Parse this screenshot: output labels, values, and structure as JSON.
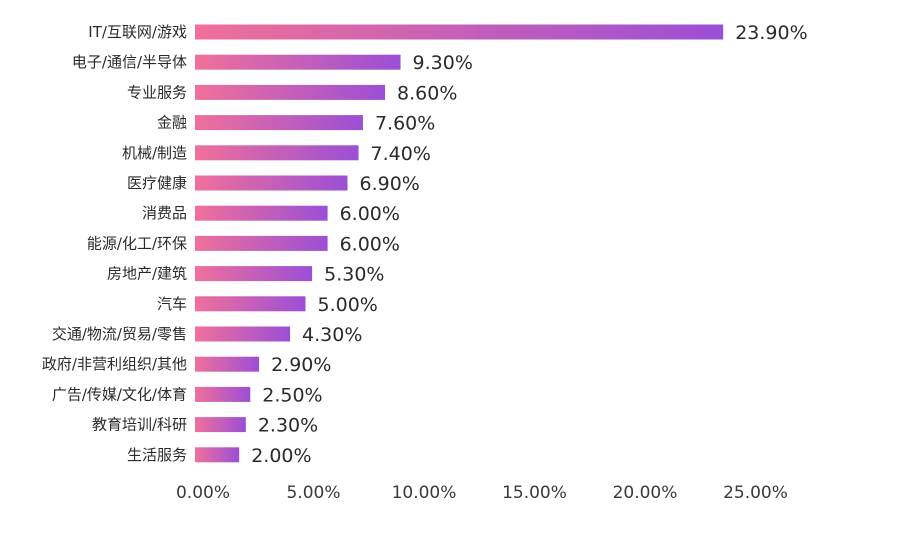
{
  "chart_data": {
    "type": "bar",
    "orientation": "horizontal",
    "categories": [
      "IT/互联网/游戏",
      "电子/通信/半导体",
      "专业服务",
      "金融",
      "机械/制造",
      "医疗健康",
      "消费品",
      "能源/化工/环保",
      "房地产/建筑",
      "汽车",
      "交通/物流/贸易/零售",
      "政府/非营利组织/其他",
      "广告/传媒/文化/体育",
      "教育培训/科研",
      "生活服务"
    ],
    "values": [
      23.9,
      9.3,
      8.6,
      7.6,
      7.4,
      6.9,
      6.0,
      6.0,
      5.3,
      5.0,
      4.3,
      2.9,
      2.5,
      2.3,
      2.0
    ],
    "value_labels": [
      "23.90%",
      "9.30%",
      "8.60%",
      "7.60%",
      "7.40%",
      "6.90%",
      "6.00%",
      "6.00%",
      "5.30%",
      "5.00%",
      "4.30%",
      "2.90%",
      "2.50%",
      "2.30%",
      "2.00%"
    ],
    "x_ticks": [
      0,
      5,
      10,
      15,
      20,
      25
    ],
    "x_tick_labels": [
      "0.00%",
      "5.00%",
      "10.00%",
      "15.00%",
      "20.00%",
      "25.00%"
    ],
    "xlim": [
      0,
      25
    ],
    "grid": false,
    "legend": "none",
    "bar_gradient": [
      "#f0709a",
      "#9b4fd6"
    ],
    "title": "",
    "xlabel": "",
    "ylabel": ""
  }
}
